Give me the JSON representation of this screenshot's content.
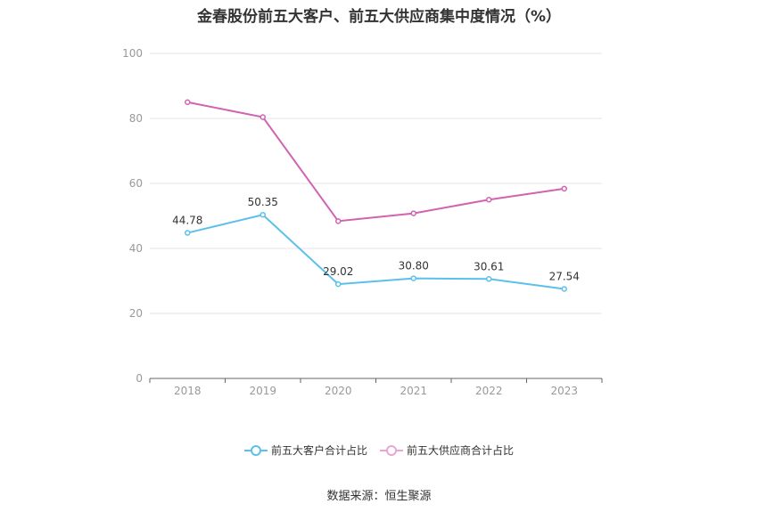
{
  "title": "金春股份前五大客户、前五大供应商集中度情况（%）",
  "source": "数据来源：恒生聚源",
  "colors": {
    "series1": "#5bc0eb",
    "series2": "#d163b0",
    "grid": "#e6e6ee",
    "axis": "#666666",
    "tick_text": "#999999"
  },
  "chart_data": {
    "type": "line",
    "title": "金春股份前五大客户、前五大供应商集中度情况（%）",
    "categories": [
      "2018",
      "2019",
      "2020",
      "2021",
      "2022",
      "2023"
    ],
    "yticks": [
      "0",
      "20",
      "40",
      "60",
      "80",
      "100"
    ],
    "ylim": [
      0,
      100
    ],
    "grid": true,
    "legend_position": "bottom-center",
    "series": [
      {
        "name": "前五大客户合计占比",
        "values": [
          44.78,
          50.35,
          29.02,
          30.8,
          30.61,
          27.54
        ],
        "labels": [
          "44.78",
          "50.35",
          "29.02",
          "30.80",
          "30.61",
          "27.54"
        ]
      },
      {
        "name": "前五大供应商合计占比",
        "values": [
          85.0,
          80.4,
          48.4,
          50.8,
          55.0,
          58.4
        ]
      }
    ]
  }
}
